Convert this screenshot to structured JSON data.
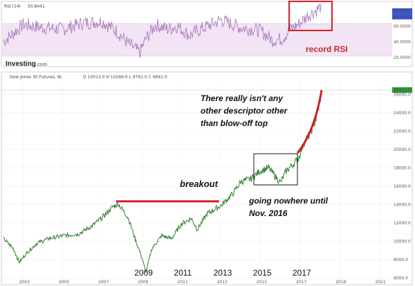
{
  "chart_data": [
    {
      "type": "line",
      "title": "RSI (14)",
      "indicator_value": "50.8441",
      "ylim": [
        10,
        90
      ],
      "y_ticks": [
        "80.0000",
        "60.0000",
        "40.0000",
        "20.0000"
      ],
      "tag_values": [
        "69.9680",
        "69.9479"
      ],
      "band": [
        30,
        70
      ],
      "colors": {
        "line": "#a070b8",
        "band": "#f2e4f4"
      },
      "annotation": "record RSI",
      "x": [
        2002.0,
        2003.0,
        2004.0,
        2005.0,
        2006.0,
        2007.0,
        2007.7,
        2008.3,
        2008.9,
        2009.2,
        2009.7,
        2010.3,
        2010.8,
        2011.4,
        2011.8,
        2012.3,
        2013.0,
        2013.6,
        2014.0,
        2014.6,
        2015.0,
        2015.6,
        2016.1,
        2016.5,
        2016.9,
        2017.4,
        2017.9,
        2018.05
      ],
      "values": [
        40,
        62,
        58,
        56,
        64,
        66,
        54,
        38,
        26,
        44,
        62,
        56,
        60,
        48,
        54,
        60,
        68,
        62,
        58,
        56,
        54,
        42,
        44,
        56,
        62,
        74,
        82,
        86
      ]
    },
    {
      "type": "line",
      "title": "Dow Jones 30 Futures, W,",
      "ohlc_text": "O 10013.0  H 10266.0  L 9791.0  C 9941.0",
      "logo": "Investing",
      "logo_suffix": ".com",
      "last_value_tag": "25451.0",
      "ylim": [
        5800,
        27400
      ],
      "y_ticks": [
        6000,
        8000,
        10000,
        12000,
        14000,
        16000,
        18000,
        20000,
        22000,
        24000,
        26000
      ],
      "x_ticks": [
        "2003",
        "2005",
        "2007",
        "2009",
        "2011",
        "2013",
        "2015",
        "2017",
        "2019",
        "2021"
      ],
      "x": [
        2002.0,
        2002.5,
        2002.8,
        2003.2,
        2003.7,
        2004.3,
        2005.0,
        2005.8,
        2006.5,
        2007.0,
        2007.5,
        2007.8,
        2008.3,
        2008.7,
        2009.0,
        2009.2,
        2009.5,
        2010.0,
        2010.5,
        2011.0,
        2011.5,
        2011.8,
        2012.3,
        2013.0,
        2013.6,
        2014.0,
        2014.5,
        2015.0,
        2015.4,
        2015.7,
        2016.0,
        2016.3,
        2016.6,
        2016.9,
        2017.2,
        2017.5,
        2017.8,
        2018.05
      ],
      "values": [
        10300,
        9200,
        7700,
        8800,
        9800,
        10300,
        10600,
        10800,
        11700,
        12600,
        13700,
        14100,
        12600,
        10000,
        8200,
        6600,
        9200,
        10600,
        10300,
        11900,
        12500,
        11300,
        13000,
        13900,
        15200,
        16500,
        16800,
        17700,
        18000,
        17200,
        16400,
        17700,
        18300,
        19000,
        20800,
        21700,
        23400,
        25700
      ],
      "annotations": {
        "breakout_label": "breakout",
        "breakout_level": 14350,
        "blowoff_text": [
          "There really isn't any",
          "other descriptor other",
          "than blow-off top"
        ],
        "nowhere_text": [
          "going nowhere until",
          "Nov. 2016"
        ],
        "year_labels": [
          "2009",
          "2011",
          "2013",
          "2015",
          "2017"
        ]
      }
    }
  ]
}
